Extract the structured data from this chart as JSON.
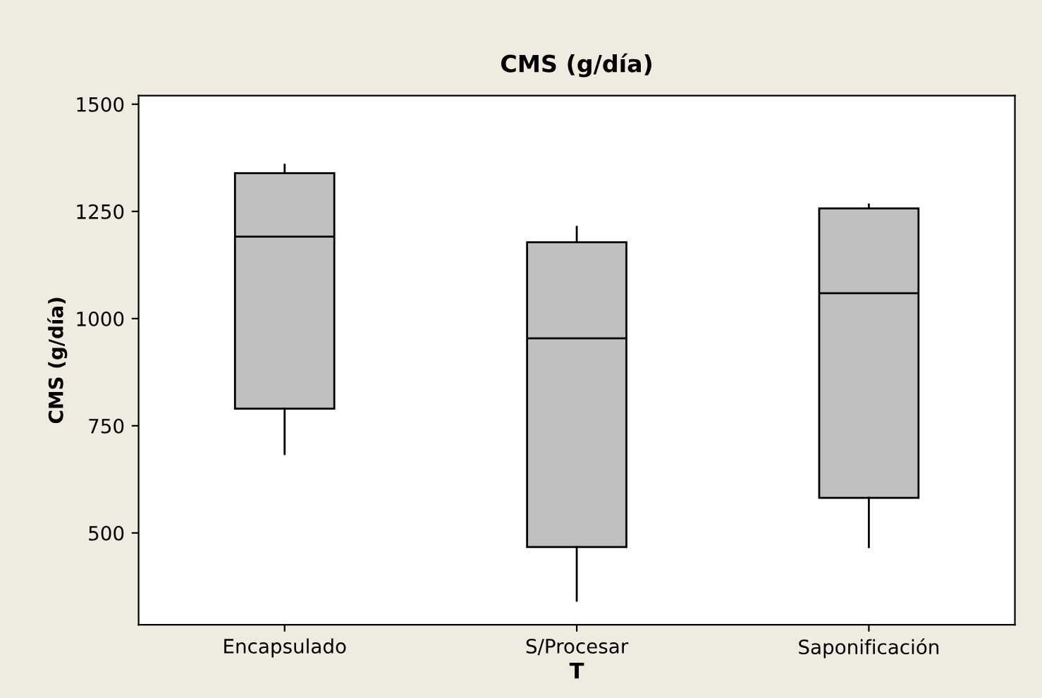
{
  "chart_data": {
    "type": "box",
    "title": "CMS (g/día)",
    "xlabel": "T",
    "ylabel": "CMS (g/día)",
    "categories": [
      "Encapsulado",
      "S/Procesar",
      "Saponificación"
    ],
    "boxes": [
      {
        "low": 684,
        "q1": 790,
        "median": 1191,
        "q3": 1339,
        "high": 1359
      },
      {
        "low": 342,
        "q1": 467,
        "median": 954,
        "q3": 1178,
        "high": 1214
      },
      {
        "low": 467,
        "q1": 582,
        "median": 1059,
        "q3": 1257,
        "high": 1266
      }
    ],
    "color": "#bfbfbf",
    "ylim": [
      286,
      1520
    ],
    "yticks": [
      500,
      750,
      1000,
      1250,
      1500
    ],
    "grid": false
  }
}
